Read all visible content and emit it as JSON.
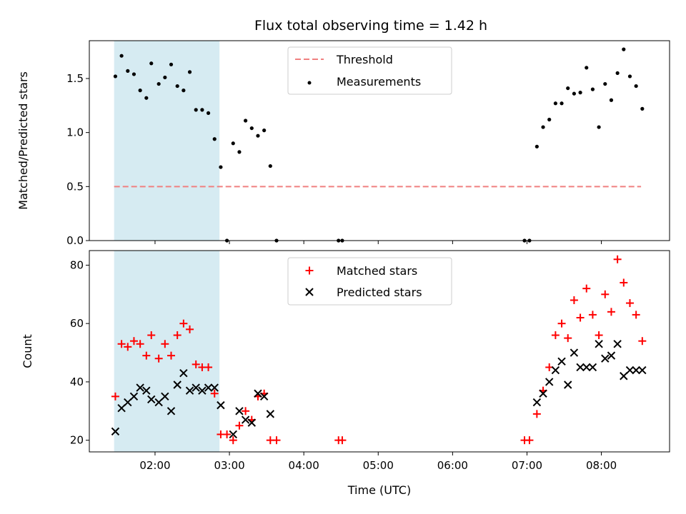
{
  "title": "Flux total observing time = 1.42 h",
  "colors": {
    "threshold": "#f08080",
    "matched": "#ff0000",
    "predicted": "#000000",
    "span": "#add8e6",
    "measurement": "#000000"
  },
  "chart_data": [
    {
      "type": "scatter",
      "ylabel": "Matched/Predicted stars",
      "xlim": [
        "01:07",
        "08:55"
      ],
      "ylim": [
        0,
        1.85
      ],
      "yticks": [
        0.0,
        0.5,
        1.0,
        1.5
      ],
      "ytick_labels": [
        "0.0",
        "0.5",
        "1.0",
        "1.5"
      ],
      "highlight_span": [
        "01:27",
        "02:52"
      ],
      "legend_position": "top-center",
      "threshold": {
        "name": "Threshold",
        "value": 0.5,
        "x_range": [
          "01:27",
          "08:32"
        ]
      },
      "series": [
        {
          "name": "Measurements",
          "points": [
            [
              "01:28",
              1.52
            ],
            [
              "01:33",
              1.71
            ],
            [
              "01:38",
              1.57
            ],
            [
              "01:43",
              1.54
            ],
            [
              "01:48",
              1.39
            ],
            [
              "01:53",
              1.32
            ],
            [
              "01:57",
              1.64
            ],
            [
              "02:03",
              1.45
            ],
            [
              "02:08",
              1.51
            ],
            [
              "02:13",
              1.63
            ],
            [
              "02:18",
              1.43
            ],
            [
              "02:23",
              1.39
            ],
            [
              "02:28",
              1.56
            ],
            [
              "02:33",
              1.21
            ],
            [
              "02:38",
              1.21
            ],
            [
              "02:43",
              1.18
            ],
            [
              "02:48",
              0.94
            ],
            [
              "02:53",
              0.68
            ],
            [
              "02:58",
              0.0
            ],
            [
              "03:03",
              0.9
            ],
            [
              "03:08",
              0.82
            ],
            [
              "03:13",
              1.11
            ],
            [
              "03:18",
              1.04
            ],
            [
              "03:23",
              0.97
            ],
            [
              "03:28",
              1.02
            ],
            [
              "03:33",
              0.69
            ],
            [
              "03:38",
              0.0
            ],
            [
              "04:28",
              0.0
            ],
            [
              "04:31",
              0.0
            ],
            [
              "06:58",
              0.0
            ],
            [
              "07:02",
              0.0
            ],
            [
              "07:08",
              0.87
            ],
            [
              "07:13",
              1.05
            ],
            [
              "07:18",
              1.12
            ],
            [
              "07:23",
              1.27
            ],
            [
              "07:28",
              1.27
            ],
            [
              "07:33",
              1.41
            ],
            [
              "07:38",
              1.36
            ],
            [
              "07:43",
              1.37
            ],
            [
              "07:48",
              1.6
            ],
            [
              "07:53",
              1.4
            ],
            [
              "07:58",
              1.05
            ],
            [
              "08:03",
              1.45
            ],
            [
              "08:08",
              1.3
            ],
            [
              "08:13",
              1.55
            ],
            [
              "08:18",
              1.77
            ],
            [
              "08:23",
              1.52
            ],
            [
              "08:28",
              1.43
            ],
            [
              "08:33",
              1.22
            ]
          ]
        }
      ]
    },
    {
      "type": "scatter",
      "xlabel": "Time (UTC)",
      "ylabel": "Count",
      "xlim": [
        "01:07",
        "08:55"
      ],
      "ylim": [
        16,
        85
      ],
      "yticks": [
        20,
        40,
        60,
        80
      ],
      "ytick_labels": [
        "20",
        "40",
        "60",
        "80"
      ],
      "xticks": [
        "02:00",
        "03:00",
        "04:00",
        "05:00",
        "06:00",
        "07:00",
        "08:00"
      ],
      "highlight_span": [
        "01:27",
        "02:52"
      ],
      "legend_position": "top-center",
      "series": [
        {
          "name": "Matched stars",
          "marker": "plus",
          "points": [
            [
              "01:28",
              35
            ],
            [
              "01:33",
              53
            ],
            [
              "01:38",
              52
            ],
            [
              "01:43",
              54
            ],
            [
              "01:48",
              53
            ],
            [
              "01:53",
              49
            ],
            [
              "01:57",
              56
            ],
            [
              "02:03",
              48
            ],
            [
              "02:08",
              53
            ],
            [
              "02:13",
              49
            ],
            [
              "02:18",
              56
            ],
            [
              "02:23",
              60
            ],
            [
              "02:28",
              58
            ],
            [
              "02:33",
              46
            ],
            [
              "02:38",
              45
            ],
            [
              "02:43",
              45
            ],
            [
              "02:48",
              36
            ],
            [
              "02:53",
              22
            ],
            [
              "02:58",
              22
            ],
            [
              "03:03",
              20
            ],
            [
              "03:08",
              25
            ],
            [
              "03:13",
              30
            ],
            [
              "03:18",
              27
            ],
            [
              "03:23",
              35
            ],
            [
              "03:28",
              36
            ],
            [
              "03:33",
              20
            ],
            [
              "03:38",
              20
            ],
            [
              "04:28",
              20
            ],
            [
              "04:31",
              20
            ],
            [
              "06:58",
              20
            ],
            [
              "07:02",
              20
            ],
            [
              "07:08",
              29
            ],
            [
              "07:13",
              37
            ],
            [
              "07:18",
              45
            ],
            [
              "07:23",
              56
            ],
            [
              "07:28",
              60
            ],
            [
              "07:33",
              55
            ],
            [
              "07:38",
              68
            ],
            [
              "07:43",
              62
            ],
            [
              "07:48",
              72
            ],
            [
              "07:53",
              63
            ],
            [
              "07:58",
              56
            ],
            [
              "08:03",
              70
            ],
            [
              "08:08",
              64
            ],
            [
              "08:13",
              82
            ],
            [
              "08:18",
              74
            ],
            [
              "08:23",
              67
            ],
            [
              "08:28",
              63
            ],
            [
              "08:33",
              54
            ]
          ]
        },
        {
          "name": "Predicted stars",
          "marker": "x",
          "points": [
            [
              "01:28",
              23
            ],
            [
              "01:33",
              31
            ],
            [
              "01:38",
              33
            ],
            [
              "01:43",
              35
            ],
            [
              "01:48",
              38
            ],
            [
              "01:53",
              37
            ],
            [
              "01:57",
              34
            ],
            [
              "02:03",
              33
            ],
            [
              "02:08",
              35
            ],
            [
              "02:13",
              30
            ],
            [
              "02:18",
              39
            ],
            [
              "02:23",
              43
            ],
            [
              "02:28",
              37
            ],
            [
              "02:33",
              38
            ],
            [
              "02:38",
              37
            ],
            [
              "02:43",
              38
            ],
            [
              "02:48",
              38
            ],
            [
              "02:53",
              32
            ],
            [
              "03:03",
              22
            ],
            [
              "03:08",
              30
            ],
            [
              "03:13",
              27
            ],
            [
              "03:18",
              26
            ],
            [
              "03:23",
              36
            ],
            [
              "03:28",
              35
            ],
            [
              "03:33",
              29
            ],
            [
              "07:08",
              33
            ],
            [
              "07:13",
              36
            ],
            [
              "07:18",
              40
            ],
            [
              "07:23",
              44
            ],
            [
              "07:28",
              47
            ],
            [
              "07:33",
              39
            ],
            [
              "07:38",
              50
            ],
            [
              "07:43",
              45
            ],
            [
              "07:48",
              45
            ],
            [
              "07:53",
              45
            ],
            [
              "07:58",
              53
            ],
            [
              "08:03",
              48
            ],
            [
              "08:08",
              49
            ],
            [
              "08:13",
              53
            ],
            [
              "08:18",
              42
            ],
            [
              "08:23",
              44
            ],
            [
              "08:28",
              44
            ],
            [
              "08:33",
              44
            ]
          ]
        }
      ]
    }
  ]
}
